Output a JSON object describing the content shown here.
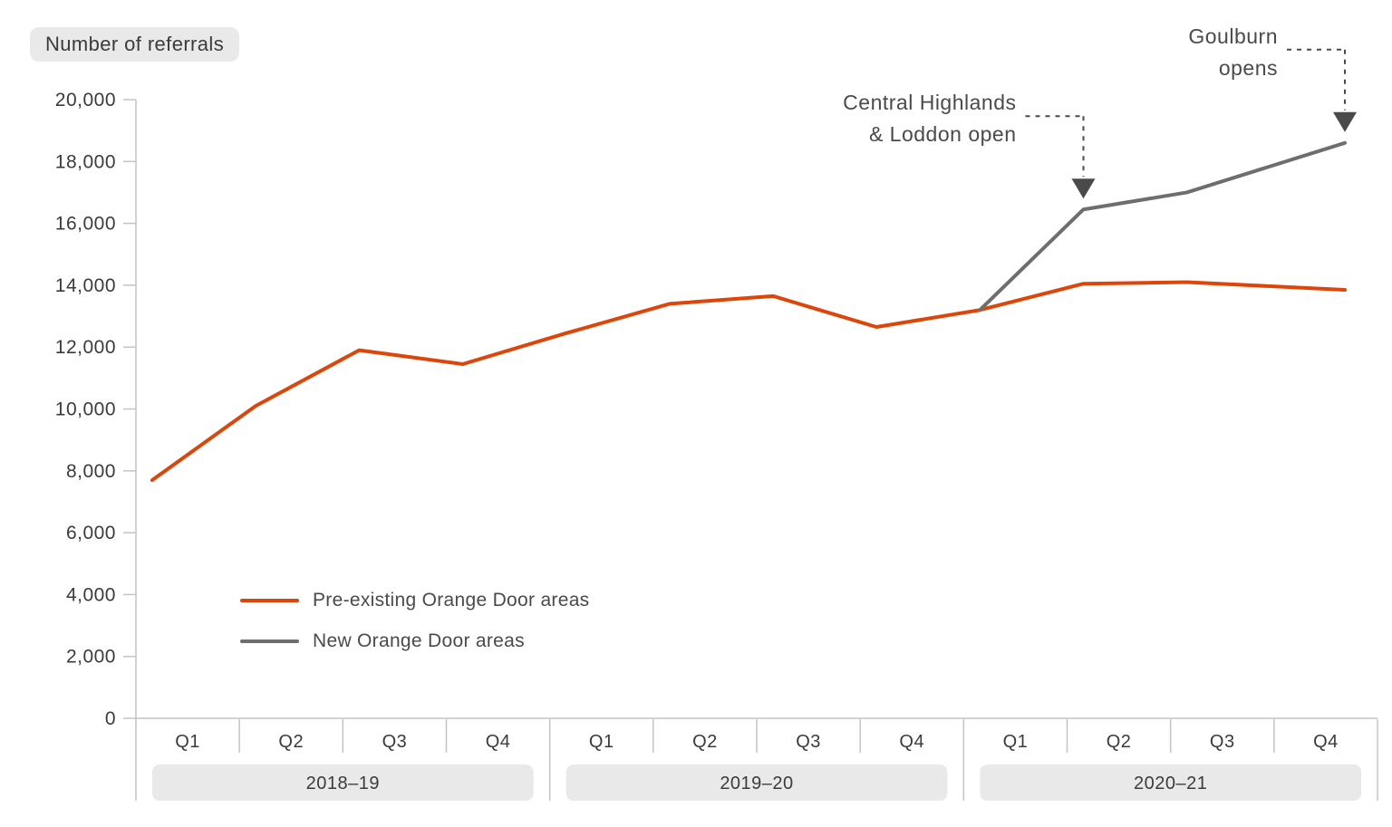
{
  "title_chip": "Number of referrals",
  "chart_data": {
    "type": "line",
    "title": "Number of referrals",
    "ylabel": "Number of referrals",
    "xlabel": "",
    "ylim": [
      0,
      20000
    ],
    "ytick_step": 2000,
    "yticks": [
      0,
      2000,
      4000,
      6000,
      8000,
      10000,
      12000,
      14000,
      16000,
      18000,
      20000
    ],
    "grid": false,
    "legend_position": "lower-left-inside",
    "year_groups": [
      {
        "label": "2018–19",
        "quarters": [
          "Q1",
          "Q2",
          "Q3",
          "Q4"
        ]
      },
      {
        "label": "2019–20",
        "quarters": [
          "Q1",
          "Q2",
          "Q3",
          "Q4"
        ]
      },
      {
        "label": "2020–21",
        "quarters": [
          "Q1",
          "Q2",
          "Q3",
          "Q4"
        ]
      }
    ],
    "series": [
      {
        "name": "Pre-existing Orange Door areas",
        "color": "#de4609",
        "start_index": 0,
        "values": [
          7700,
          10100,
          11900,
          11450,
          12450,
          13400,
          13650,
          12650,
          13200,
          14050,
          14100,
          13850
        ]
      },
      {
        "name": "New Orange Door areas",
        "color": "#6e6e6e",
        "start_index": 8,
        "values": [
          13200,
          16450,
          17000,
          18600
        ]
      }
    ],
    "annotations": [
      {
        "lines": [
          "Central Highlands",
          "& Loddon open"
        ],
        "series": 1,
        "point": 1
      },
      {
        "lines": [
          "Goulburn",
          "opens"
        ],
        "series": 1,
        "point": 3
      }
    ],
    "colors": {
      "axis": "#c4c4c4",
      "tick_label": "#3b3b3b",
      "band_fill": "#e9e9e9",
      "annotation": "#4a4a4a"
    }
  }
}
